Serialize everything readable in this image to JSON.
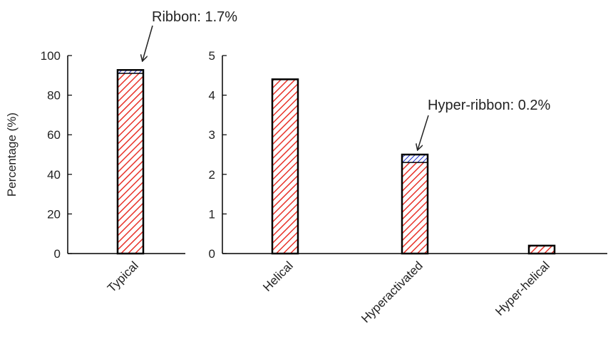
{
  "chart_data": [
    {
      "type": "bar",
      "stacked": true,
      "categories": [
        "Typical"
      ],
      "series": [
        {
          "name": "",
          "values": [
            91.0
          ],
          "color": "#e8332a",
          "pattern": "red-diagonal-hatch"
        },
        {
          "name": "",
          "values": [
            1.7
          ],
          "color": "#2233cc",
          "pattern": "blue-diagonal-hatch"
        }
      ],
      "ylabel": "Percentage (%)",
      "ylim": [
        0,
        100
      ],
      "yticks": [
        0,
        20,
        40,
        60,
        80,
        100
      ],
      "annotations": [
        {
          "text": "Ribbon: 1.7%",
          "category": "Typical"
        }
      ]
    },
    {
      "type": "bar",
      "stacked": true,
      "categories": [
        "Helical",
        "Hyperactivated",
        "Hyper-helical"
      ],
      "series": [
        {
          "name": "",
          "values": [
            4.4,
            2.3,
            0.2
          ],
          "color": "#e8332a",
          "pattern": "red-diagonal-hatch"
        },
        {
          "name": "",
          "values": [
            0,
            0.2,
            0
          ],
          "color": "#2233cc",
          "pattern": "blue-diagonal-hatch"
        }
      ],
      "ylim": [
        0,
        5
      ],
      "yticks": [
        0,
        1,
        2,
        3,
        4,
        5
      ],
      "annotations": [
        {
          "text": "Hyper-ribbon: 0.2%",
          "category": "Hyperactivated"
        }
      ]
    }
  ]
}
